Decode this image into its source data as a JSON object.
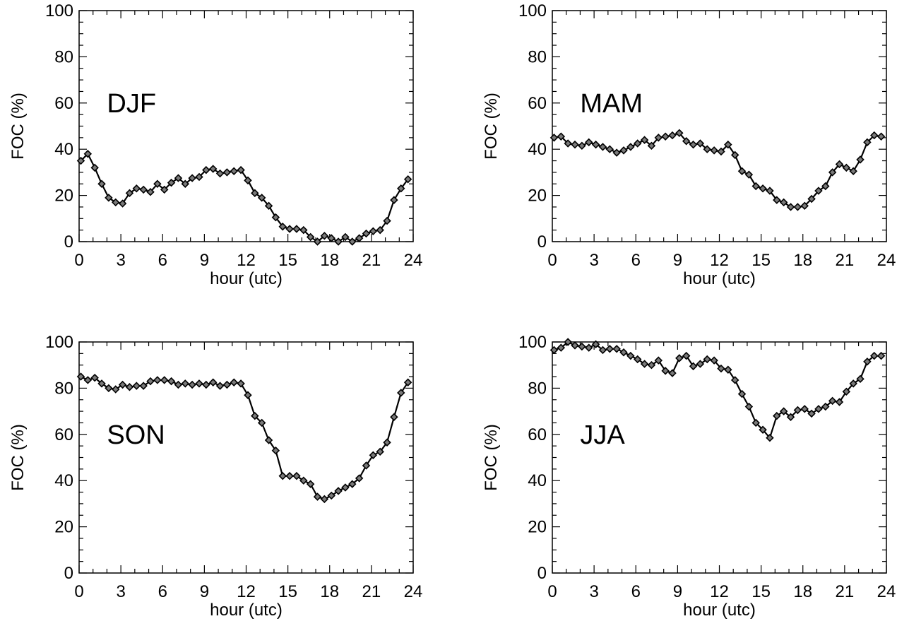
{
  "chart_data": [
    {
      "type": "line",
      "label": "DJF",
      "xlabel": "hour (utc)",
      "ylabel": "FOC (%)",
      "xlim": [
        0,
        24
      ],
      "ylim": [
        0,
        100
      ],
      "xticks": [
        "0",
        "3",
        "6",
        "9",
        "12",
        "15",
        "18",
        "21",
        "24"
      ],
      "yticks": [
        "0",
        "20",
        "40",
        "60",
        "80",
        "100"
      ],
      "marker": "diamond",
      "line_color": "#000000",
      "x": [
        0.125,
        0.625,
        1.125,
        1.625,
        2.125,
        2.625,
        3.125,
        3.625,
        4.125,
        4.625,
        5.125,
        5.625,
        6.125,
        6.625,
        7.125,
        7.625,
        8.125,
        8.625,
        9.125,
        9.625,
        10.125,
        10.625,
        11.125,
        11.625,
        12.125,
        12.625,
        13.125,
        13.625,
        14.125,
        14.625,
        15.125,
        15.625,
        16.125,
        16.625,
        17.125,
        17.625,
        18.125,
        18.625,
        19.125,
        19.625,
        20.125,
        20.625,
        21.125,
        21.625,
        22.125,
        22.625,
        23.125,
        23.625
      ],
      "y": [
        35,
        38,
        32,
        25,
        19,
        17,
        16.5,
        21,
        23,
        22.5,
        21.5,
        25,
        22.5,
        25.5,
        27.5,
        25,
        27.5,
        28,
        31,
        31.5,
        29.5,
        30,
        30.5,
        31,
        26.5,
        21,
        19,
        15.5,
        10.5,
        6.5,
        5.5,
        5.5,
        5,
        2,
        0,
        2.5,
        1.5,
        0,
        2,
        0,
        1.5,
        3.5,
        4.5,
        5,
        9,
        18,
        23,
        27
      ]
    },
    {
      "type": "line",
      "label": "MAM",
      "xlabel": "hour (utc)",
      "ylabel": "FOC (%)",
      "xlim": [
        0,
        24
      ],
      "ylim": [
        0,
        100
      ],
      "xticks": [
        "0",
        "3",
        "6",
        "9",
        "12",
        "15",
        "18",
        "21",
        "24"
      ],
      "yticks": [
        "0",
        "20",
        "40",
        "60",
        "80",
        "100"
      ],
      "marker": "diamond",
      "line_color": "#000000",
      "x": [
        0.125,
        0.625,
        1.125,
        1.625,
        2.125,
        2.625,
        3.125,
        3.625,
        4.125,
        4.625,
        5.125,
        5.625,
        6.125,
        6.625,
        7.125,
        7.625,
        8.125,
        8.625,
        9.125,
        9.625,
        10.125,
        10.625,
        11.125,
        11.625,
        12.125,
        12.625,
        13.125,
        13.625,
        14.125,
        14.625,
        15.125,
        15.625,
        16.125,
        16.625,
        17.125,
        17.625,
        18.125,
        18.625,
        19.125,
        19.625,
        20.125,
        20.625,
        21.125,
        21.625,
        22.125,
        22.625,
        23.125,
        23.625
      ],
      "y": [
        45,
        45.5,
        42.5,
        42,
        41.5,
        43,
        42,
        41,
        40,
        38.5,
        39.5,
        41,
        42.5,
        44,
        41.5,
        45,
        45.5,
        46,
        47,
        43.5,
        42,
        42.5,
        40,
        39.5,
        39,
        42,
        37.5,
        30.5,
        29,
        24,
        23,
        22,
        18,
        17,
        15,
        15,
        15.5,
        18.5,
        22,
        24,
        30,
        33.5,
        32,
        30.5,
        35.5,
        43,
        46,
        45.5
      ]
    },
    {
      "type": "line",
      "label": "SON",
      "xlabel": "hour (utc)",
      "ylabel": "FOC (%)",
      "xlim": [
        0,
        24
      ],
      "ylim": [
        0,
        100
      ],
      "xticks": [
        "0",
        "3",
        "6",
        "9",
        "12",
        "15",
        "18",
        "21",
        "24"
      ],
      "yticks": [
        "0",
        "20",
        "40",
        "60",
        "80",
        "100"
      ],
      "marker": "diamond",
      "line_color": "#000000",
      "x": [
        0.125,
        0.625,
        1.125,
        1.625,
        2.125,
        2.625,
        3.125,
        3.625,
        4.125,
        4.625,
        5.125,
        5.625,
        6.125,
        6.625,
        7.125,
        7.625,
        8.125,
        8.625,
        9.125,
        9.625,
        10.125,
        10.625,
        11.125,
        11.625,
        12.125,
        12.625,
        13.125,
        13.625,
        14.125,
        14.625,
        15.125,
        15.625,
        16.125,
        16.625,
        17.125,
        17.625,
        18.125,
        18.625,
        19.125,
        19.625,
        20.125,
        20.625,
        21.125,
        21.625,
        22.125,
        22.625,
        23.125,
        23.625
      ],
      "y": [
        85,
        83.5,
        84.5,
        82,
        80,
        79.5,
        81.5,
        80.5,
        81,
        81,
        83,
        83.5,
        83.5,
        83,
        81.5,
        82,
        81.5,
        82,
        81.5,
        82.5,
        81,
        81.5,
        82.5,
        82,
        77,
        68,
        65,
        57.5,
        53,
        42,
        42,
        42,
        40,
        38.5,
        33,
        32,
        33.5,
        35.5,
        37,
        38.5,
        41,
        46.5,
        51,
        52.5,
        56.5,
        67.5,
        78,
        82.5
      ]
    },
    {
      "type": "line",
      "label": "JJA",
      "xlabel": "hour (utc)",
      "ylabel": "FOC (%)",
      "xlim": [
        0,
        24
      ],
      "ylim": [
        0,
        100
      ],
      "xticks": [
        "0",
        "3",
        "6",
        "9",
        "12",
        "15",
        "18",
        "21",
        "24"
      ],
      "yticks": [
        "0",
        "20",
        "40",
        "60",
        "80",
        "100"
      ],
      "marker": "diamond",
      "line_color": "#000000",
      "x": [
        0.125,
        0.625,
        1.125,
        1.625,
        2.125,
        2.625,
        3.125,
        3.625,
        4.125,
        4.625,
        5.125,
        5.625,
        6.125,
        6.625,
        7.125,
        7.625,
        8.125,
        8.625,
        9.125,
        9.625,
        10.125,
        10.625,
        11.125,
        11.625,
        12.125,
        12.625,
        13.125,
        13.625,
        14.125,
        14.625,
        15.125,
        15.625,
        16.125,
        16.625,
        17.125,
        17.625,
        18.125,
        18.625,
        19.125,
        19.625,
        20.125,
        20.625,
        21.125,
        21.625,
        22.125,
        22.625,
        23.125,
        23.625
      ],
      "y": [
        96.5,
        97.5,
        100,
        98.5,
        98,
        97.5,
        99,
        96.5,
        97,
        97,
        95.5,
        94,
        92.5,
        90.5,
        90,
        92,
        87.5,
        86.5,
        93,
        94,
        89.5,
        90.5,
        92.5,
        92,
        88.5,
        88,
        83.5,
        77.5,
        72,
        65,
        62,
        58.5,
        68,
        70,
        67.5,
        70.5,
        71,
        69,
        71,
        72,
        74.5,
        74,
        78.5,
        82,
        84,
        91.5,
        94,
        94
      ]
    }
  ]
}
